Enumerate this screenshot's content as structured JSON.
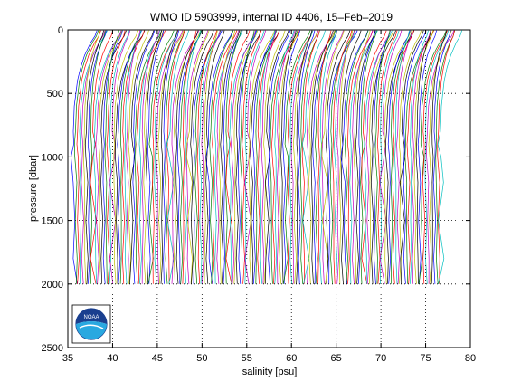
{
  "chart_data": {
    "type": "line",
    "title": "WMO ID 5903999, internal ID 4406, 15–Feb–2019",
    "xlabel": "salinity [psu]",
    "ylabel": "pressure [dbar]",
    "xlim": [
      35,
      80
    ],
    "ylim": [
      0,
      2500
    ],
    "y_reversed": true,
    "xticks": [
      35,
      40,
      45,
      50,
      55,
      60,
      65,
      70,
      75,
      80
    ],
    "yticks": [
      0,
      500,
      1000,
      1500,
      2000,
      2500
    ],
    "xtick_labels": [
      "35",
      "40",
      "45",
      "50",
      "55",
      "60",
      "65",
      "70",
      "75",
      "80"
    ],
    "ytick_labels": [
      "0",
      "500",
      "1000",
      "1500",
      "2000",
      "2500"
    ],
    "grid": "dotted",
    "profile_count": 172,
    "profile_offset_psu": 0.24,
    "profile_x_start_psu": 35.7,
    "profile_max_pressure_dbar": 2000,
    "profile_shape": {
      "pressure": [
        5,
        50,
        100,
        200,
        300,
        400,
        500,
        600,
        700,
        800,
        900,
        1000,
        1200,
        1500,
        1800,
        2000
      ],
      "salinity": [
        37.2,
        37.0,
        36.6,
        36.0,
        35.6,
        35.3,
        35.15,
        35.0,
        34.95,
        34.9,
        34.9,
        34.92,
        34.95,
        34.97,
        34.98,
        34.98
      ]
    },
    "series_colors": [
      "#0000ff",
      "#008000",
      "#ff0000",
      "#00bfbf",
      "#bf00bf",
      "#bfbf00",
      "#000000"
    ],
    "logo": "NOAA"
  }
}
